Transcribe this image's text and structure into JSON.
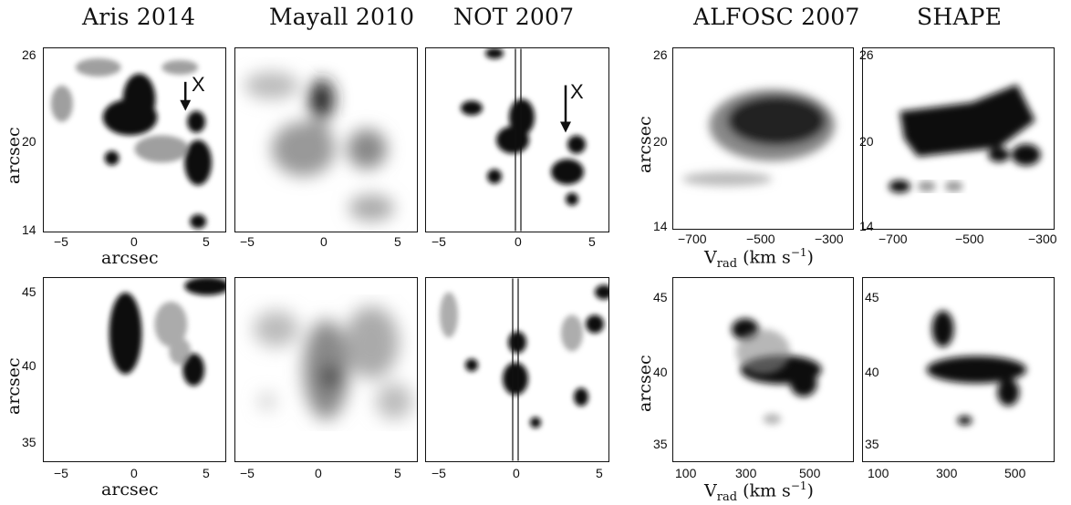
{
  "titles": {
    "aris": "Aris 2014",
    "mayall": "Mayall 2010",
    "not": "NOT 2007",
    "alfosc": "ALFOSC 2007",
    "shape": "SHAPE"
  },
  "axis_labels": {
    "arcsec": "arcsec",
    "vrad_main": "V",
    "vrad_sub": "rad",
    "vrad_units": " (km s",
    "vrad_exp": "−1",
    "vrad_close": ")"
  },
  "markers": {
    "x": "X"
  },
  "ticks": {
    "top_y": [
      "26",
      "20",
      "14"
    ],
    "bottom_y": [
      "45",
      "40",
      "35"
    ],
    "pos_x": [
      "−5",
      "0",
      "5"
    ],
    "vel_top": [
      "−700",
      "−500",
      "−300"
    ],
    "vel_bottom": [
      "100",
      "300",
      "500"
    ]
  }
}
